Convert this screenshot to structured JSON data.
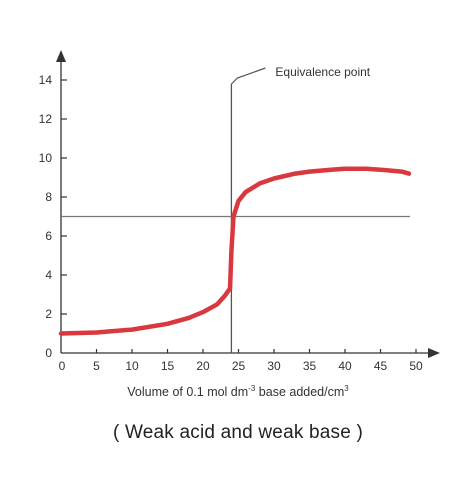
{
  "chart_data": {
    "type": "line",
    "xlim": [
      0,
      50
    ],
    "ylim": [
      0,
      14
    ],
    "x_ticks": [
      "0",
      "5",
      "10",
      "15",
      "20",
      "25",
      "30",
      "35",
      "40",
      "45",
      "50"
    ],
    "y_ticks": [
      "0",
      "2",
      "4",
      "6",
      "8",
      "10",
      "12",
      "14"
    ],
    "xlabel_parts": [
      "Volume of 0.1 mol dm",
      "-3",
      " base added/cm",
      "3"
    ],
    "caption": "( Weak acid and weak base )",
    "line_color": "#d9383e",
    "series": [
      {
        "x": [
          0,
          5,
          10,
          15,
          18,
          20,
          22,
          23,
          23.8,
          24,
          24.3,
          25,
          26,
          28,
          30,
          33,
          35,
          38,
          40,
          43,
          45,
          48,
          49
        ],
        "y": [
          1.0,
          1.05,
          1.2,
          1.5,
          1.8,
          2.1,
          2.5,
          2.9,
          3.3,
          5.2,
          7.0,
          7.8,
          8.25,
          8.7,
          8.95,
          9.2,
          9.3,
          9.4,
          9.45,
          9.45,
          9.4,
          9.3,
          9.2
        ]
      }
    ],
    "reference_line": {
      "y": 7
    },
    "equivalence": {
      "x": 24,
      "label": "Equivalence point"
    }
  }
}
